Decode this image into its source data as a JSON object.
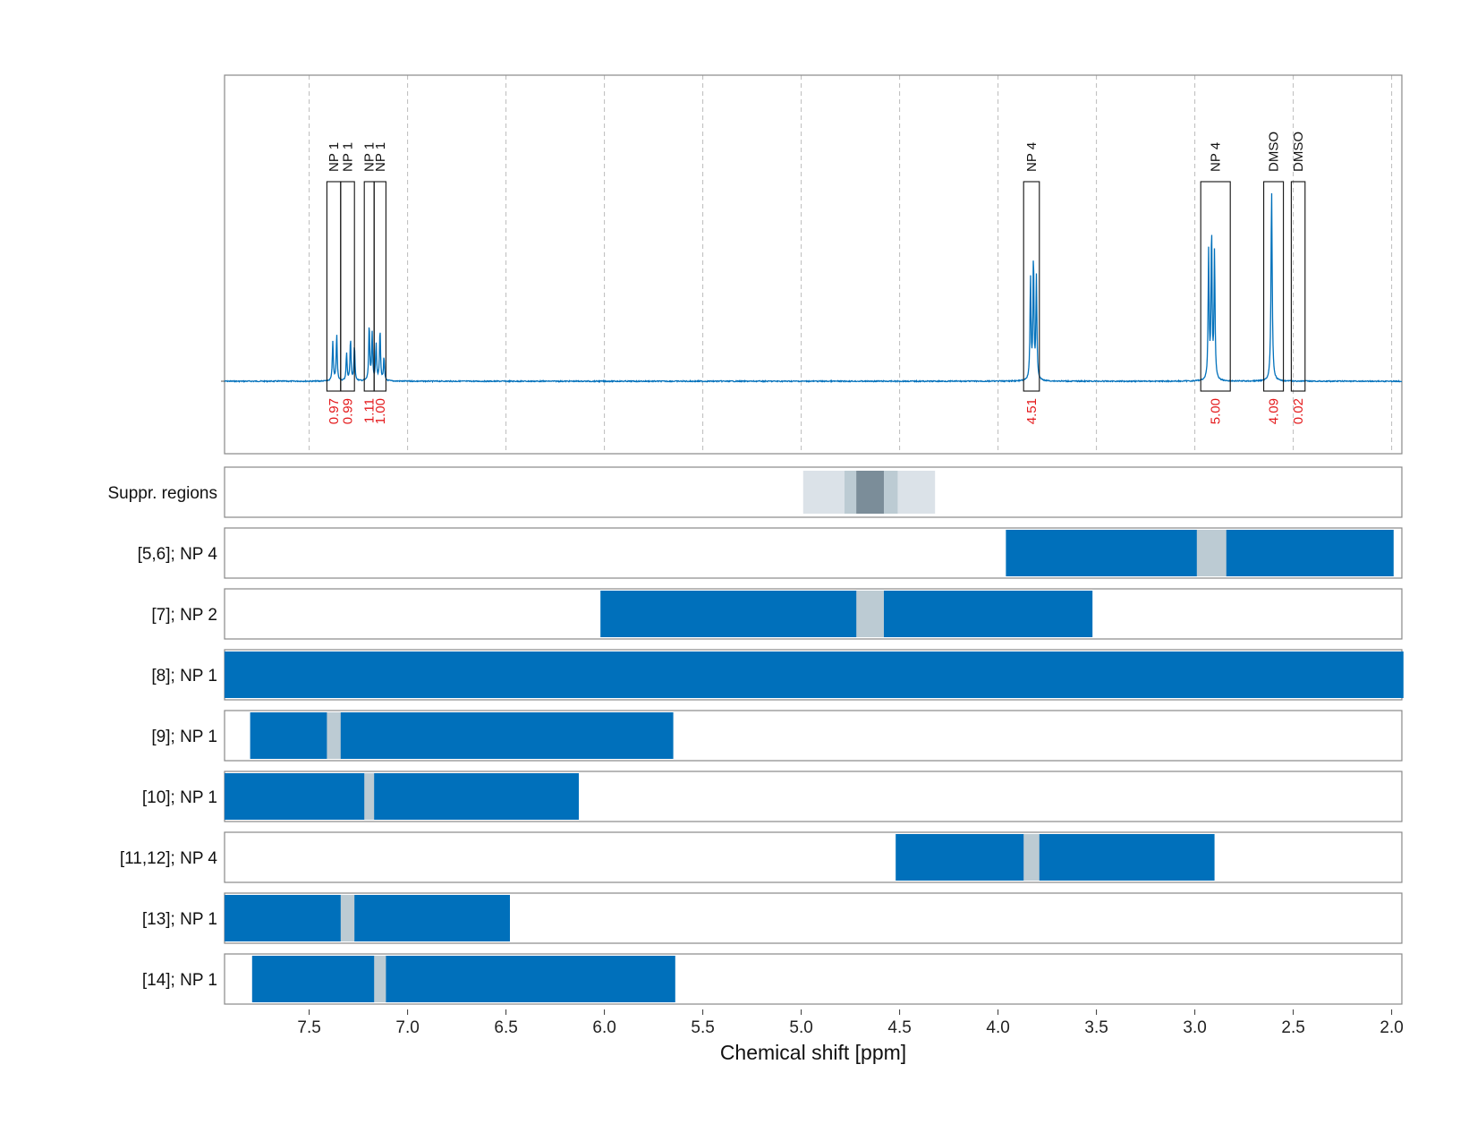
{
  "chart_data": {
    "type": "line",
    "xlabel": "Chemical shift [ppm]",
    "xlim": [
      7.93,
      1.94
    ],
    "x_reversed": true,
    "x_ticks": [
      "7.5",
      "7.0",
      "6.5",
      "6.0",
      "5.5",
      "5.0",
      "4.5",
      "4.0",
      "3.5",
      "3.0",
      "2.5",
      "2.0"
    ],
    "grid": "vertical dashed",
    "colors": {
      "spectrum": "#0070bb",
      "bar": "#0070bb",
      "excluded": "#bccbd3",
      "integral_text": "#e41a1c",
      "frame": "#888888",
      "grid": "#bbbbbb"
    },
    "spectrum_peaks": [
      {
        "ppm": 7.38,
        "height": 0.17,
        "width": 0.006
      },
      {
        "ppm": 7.36,
        "height": 0.2,
        "width": 0.006
      },
      {
        "ppm": 7.31,
        "height": 0.12,
        "width": 0.006
      },
      {
        "ppm": 7.29,
        "height": 0.18,
        "width": 0.006
      },
      {
        "ppm": 7.27,
        "height": 0.15,
        "width": 0.006
      },
      {
        "ppm": 7.195,
        "height": 0.24,
        "width": 0.006
      },
      {
        "ppm": 7.18,
        "height": 0.2,
        "width": 0.006
      },
      {
        "ppm": 7.16,
        "height": 0.16,
        "width": 0.006
      },
      {
        "ppm": 7.14,
        "height": 0.22,
        "width": 0.006
      },
      {
        "ppm": 7.12,
        "height": 0.1,
        "width": 0.006
      },
      {
        "ppm": 3.835,
        "height": 0.44,
        "width": 0.006
      },
      {
        "ppm": 3.82,
        "height": 0.53,
        "width": 0.006
      },
      {
        "ppm": 3.805,
        "height": 0.44,
        "width": 0.006
      },
      {
        "ppm": 2.93,
        "height": 0.55,
        "width": 0.006
      },
      {
        "ppm": 2.915,
        "height": 0.64,
        "width": 0.006
      },
      {
        "ppm": 2.9,
        "height": 0.55,
        "width": 0.006
      },
      {
        "ppm": 2.61,
        "height": 0.82,
        "width": 0.007
      }
    ],
    "peak_regions": [
      {
        "label": "NP 1",
        "from": 7.41,
        "to": 7.34,
        "integral": "0.97"
      },
      {
        "label": "NP 1",
        "from": 7.34,
        "to": 7.27,
        "integral": "0.99"
      },
      {
        "label": "NP 1",
        "from": 7.22,
        "to": 7.17,
        "integral": "1.11"
      },
      {
        "label": "NP 1",
        "from": 7.17,
        "to": 7.11,
        "integral": "1.00"
      },
      {
        "label": "NP 4",
        "from": 3.87,
        "to": 3.79,
        "integral": "4.51"
      },
      {
        "label": "NP 4",
        "from": 2.97,
        "to": 2.82,
        "integral": "5.00"
      },
      {
        "label": "DMSO",
        "from": 2.65,
        "to": 2.55,
        "integral": "4.09"
      },
      {
        "label": "DMSO",
        "from": 2.51,
        "to": 2.44,
        "integral": "0.02"
      }
    ],
    "suppression": {
      "label": "Suppr. regions",
      "bands": [
        {
          "from": 4.99,
          "to": 4.32,
          "color": "#dbe2e8"
        },
        {
          "from": 4.78,
          "to": 4.51,
          "color": "#bccbd3"
        },
        {
          "from": 4.72,
          "to": 4.58,
          "color": "#7b8d99"
        }
      ]
    },
    "rows": [
      {
        "label": "[5,6]; NP 4",
        "from": 3.96,
        "to": 1.99,
        "excluded": [
          [
            2.99,
            2.84
          ]
        ]
      },
      {
        "label": "[7]; NP 2",
        "from": 6.02,
        "to": 3.52,
        "excluded": [
          [
            4.72,
            4.58
          ]
        ]
      },
      {
        "label": "[8]; NP 1",
        "from": 7.93,
        "to": 1.94,
        "excluded": []
      },
      {
        "label": "[9]; NP 1",
        "from": 7.8,
        "to": 5.65,
        "excluded": [
          [
            7.41,
            7.34
          ]
        ]
      },
      {
        "label": "[10]; NP 1",
        "from": 7.93,
        "to": 6.13,
        "excluded": [
          [
            7.22,
            7.17
          ]
        ]
      },
      {
        "label": "[11,12]; NP 4",
        "from": 4.52,
        "to": 2.9,
        "excluded": [
          [
            3.87,
            3.79
          ]
        ]
      },
      {
        "label": "[13]; NP 1",
        "from": 7.93,
        "to": 6.48,
        "excluded": [
          [
            7.34,
            7.27
          ]
        ]
      },
      {
        "label": "[14]; NP 1",
        "from": 7.79,
        "to": 5.64,
        "excluded": [
          [
            7.17,
            7.11
          ]
        ]
      }
    ]
  }
}
